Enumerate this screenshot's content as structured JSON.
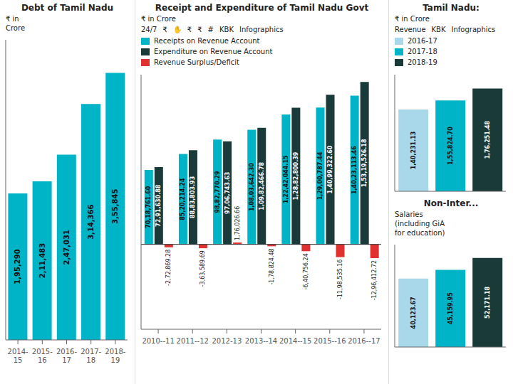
{
  "chart_data": [
    {
      "type": "bar",
      "title": "Debt of Tamil Nadu",
      "subtitle": "₹ in\nCrore",
      "categories": [
        "2014-\n15",
        "2015-\n16",
        "2016-\n17",
        "2017-\n18",
        "2018-\n19"
      ],
      "values": [
        195290,
        211483,
        247031,
        314366,
        355845
      ],
      "value_labels": [
        "1,95,290",
        "2,11,483",
        "2,47,031",
        "3,14,366",
        "3,55,845"
      ],
      "color": "#00b4c8",
      "ylim": [
        0,
        400000
      ],
      "yticks": [
        0,
        100000,
        200000,
        300000,
        400000
      ],
      "data_labels": true,
      "tick_labels": "x",
      "grid": false
    },
    {
      "type": "bar",
      "title": "Receipt and Expenditure of Tamil Nadu Govt",
      "subtitle": "₹ in Crore",
      "annotations": [
        "24/7",
        "₹",
        "✋",
        "₹",
        "₹",
        "#",
        "KBK",
        "Infographics"
      ],
      "categories": [
        "2010--11",
        "2011--12",
        "2012-13",
        "2013--14",
        "2014--15",
        "2015--16",
        "2016--17"
      ],
      "series": [
        {
          "name": "Receipts on Revenue Account",
          "color": "#00b4c8",
          "values": [
            7018761.6,
            8520214.24,
            9882770.29,
            10803642.3,
            12242044.15,
            12900787.44,
            14023113.46
          ],
          "value_labels": [
            "70,18,761.60",
            "85,20,214.24",
            "98,82,770.29",
            "1,08,03,642.30",
            "1,22,42,044.15",
            "1,29,00,787.44",
            "1,40,23,113.46"
          ]
        },
        {
          "name": "Expenditure on Revenue Account",
          "color": "#1a3a3a",
          "values": [
            7291630.88,
            8883803.93,
            9706743.63,
            10982466.78,
            12882800.39,
            14099322.6,
            15319526.18
          ],
          "value_labels": [
            "72,91,630.88",
            "88,83,803.93",
            "97,06,743.63",
            "1,09,82,466.78",
            "1,28,82,800.39",
            "1,40,99,322.60",
            "1,53,19,526.18"
          ]
        },
        {
          "name": "Revenue Surplus/Deficit",
          "color": "#e03030",
          "values": [
            -272869.28,
            -363589.69,
            176026.66,
            -178824.48,
            -640756.24,
            -1198535.16,
            -1296412.72
          ],
          "value_labels": [
            "-2,72,869.28",
            "-3,63,589.69",
            "1,76,026.66",
            "-1,78,824.48",
            "-6,40,756.24",
            "-11,98,535.16",
            "-12,96,412.72"
          ]
        }
      ],
      "ylim": [
        -8000000,
        16000000
      ],
      "yticks": [
        -8000000,
        -4000000,
        0,
        4000000,
        8000000,
        12000000,
        16000000
      ],
      "data_labels": true,
      "tick_labels": "x",
      "legend": "top",
      "grid": false
    },
    {
      "type": "bar",
      "title": "Tamil Nadu:",
      "subtitle": "₹ in Crore",
      "annotations": [
        "Revenue",
        "KBK",
        "Infographics"
      ],
      "categories": [
        "2016-17",
        "2017-18",
        "2018-19"
      ],
      "values": [
        140231.13,
        155824.7,
        176251.48
      ],
      "value_labels": [
        "1,40,231.13",
        "1,55,824.70",
        "1,76,251.48"
      ],
      "colors": [
        "#a8d8ea",
        "#00b4c8",
        "#1a3a3a"
      ],
      "ylim": [
        0,
        200000
      ],
      "yticks": [
        0,
        50000,
        100000,
        150000,
        200000
      ],
      "data_labels": true,
      "tick_labels": false,
      "legend": "top",
      "grid": false
    },
    {
      "type": "bar",
      "title": "Non-Inter...",
      "subtitle": "Salaries\n(including GiA\nfor education)",
      "categories": [
        "2016-17",
        "2017-18",
        "2018-19"
      ],
      "values": [
        40123.67,
        45159.95,
        52171.18
      ],
      "value_labels": [
        "40,123.67",
        "45,159.95",
        "52,171.18"
      ],
      "colors": [
        "#a8d8ea",
        "#00b4c8",
        "#1a3a3a"
      ],
      "ylim": [
        0,
        60000
      ],
      "yticks": [
        0,
        20000,
        40000,
        60000
      ],
      "data_labels": true,
      "tick_labels": false,
      "grid": false
    }
  ]
}
